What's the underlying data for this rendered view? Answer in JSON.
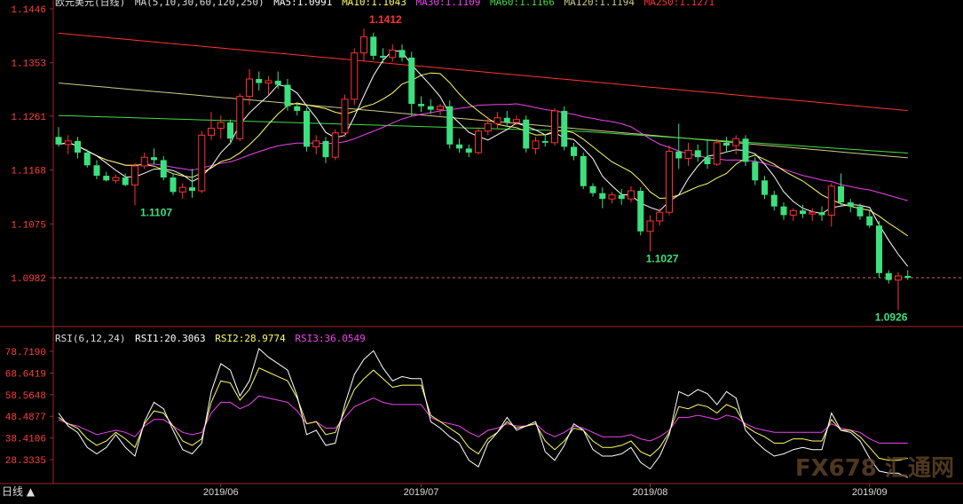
{
  "header": {
    "main_symbol": "欧元美元(日线)",
    "ma_params": "MA(5,10,30,60,120,250)",
    "ma5": "MA5:1.0991",
    "ma10": "MA10:1.1043",
    "ma30": "MA30:1.1109",
    "ma60": "MA60:1.1166",
    "ma120": "MA120:1.1194",
    "ma250": "MA250:1.1271"
  },
  "rsi_header": {
    "params": "RSI(6,12,24)",
    "rsi1": "RSI1:20.3063",
    "rsi2": "RSI2:28.9774",
    "rsi3": "RSI3:36.0549"
  },
  "period_label": "日线 ▲",
  "watermark": "FX678 汇通网",
  "colors": {
    "up": "#ff3232",
    "down": "#3ce07e",
    "ma5": "#ffffff",
    "ma10": "#ffff66",
    "ma30": "#ee44ee",
    "ma60": "#44dd44",
    "ma120": "#cccc88",
    "ma250": "#ff3333",
    "axis": "#aa2222",
    "grid": "#8b1a1a"
  },
  "chart_data": [
    {
      "type": "candlestick",
      "yaxis_ticks": [
        "1.1446",
        "1.1353",
        "1.1261",
        "1.1168",
        "1.1075",
        "1.0982"
      ],
      "ylim": [
        1.09,
        1.1446
      ],
      "current_price_line": 1.0982,
      "xaxis_ticks": [
        {
          "label": "2019/06",
          "index": 17
        },
        {
          "label": "2019/07",
          "index": 38
        },
        {
          "label": "2019/08",
          "index": 62
        },
        {
          "label": "2019/09",
          "index": 85
        }
      ],
      "annotations": [
        {
          "text": "1.1107",
          "index": 8,
          "value": 1.1107,
          "color": "#3ce07e"
        },
        {
          "text": "1.1412",
          "index": 32,
          "value": 1.1412,
          "color": "#ff3232"
        },
        {
          "text": "1.1027",
          "index": 61,
          "value": 1.1027,
          "color": "#3ce07e"
        },
        {
          "text": "1.0926",
          "index": 85,
          "value": 1.0926,
          "color": "#3ce07e"
        }
      ],
      "candles": [
        {
          "o": 1.1225,
          "h": 1.1242,
          "l": 1.1208,
          "c": 1.1212
        },
        {
          "o": 1.1212,
          "h": 1.1228,
          "l": 1.1195,
          "c": 1.1218
        },
        {
          "o": 1.1218,
          "h": 1.1225,
          "l": 1.1188,
          "c": 1.1198
        },
        {
          "o": 1.1198,
          "h": 1.1203,
          "l": 1.1172,
          "c": 1.1176
        },
        {
          "o": 1.1176,
          "h": 1.1185,
          "l": 1.1152,
          "c": 1.1158
        },
        {
          "o": 1.1158,
          "h": 1.1165,
          "l": 1.1148,
          "c": 1.115
        },
        {
          "o": 1.115,
          "h": 1.116,
          "l": 1.1145,
          "c": 1.1155
        },
        {
          "o": 1.1155,
          "h": 1.1162,
          "l": 1.114,
          "c": 1.1142
        },
        {
          "o": 1.1142,
          "h": 1.118,
          "l": 1.1107,
          "c": 1.1175
        },
        {
          "o": 1.1175,
          "h": 1.1198,
          "l": 1.117,
          "c": 1.119
        },
        {
          "o": 1.119,
          "h": 1.1205,
          "l": 1.1178,
          "c": 1.1185
        },
        {
          "o": 1.1185,
          "h": 1.1192,
          "l": 1.115,
          "c": 1.1155
        },
        {
          "o": 1.1155,
          "h": 1.1162,
          "l": 1.1125,
          "c": 1.113
        },
        {
          "o": 1.113,
          "h": 1.1145,
          "l": 1.1118,
          "c": 1.1138
        },
        {
          "o": 1.1138,
          "h": 1.117,
          "l": 1.112,
          "c": 1.1132
        },
        {
          "o": 1.1132,
          "h": 1.1235,
          "l": 1.1128,
          "c": 1.1228
        },
        {
          "o": 1.1228,
          "h": 1.1268,
          "l": 1.122,
          "c": 1.124
        },
        {
          "o": 1.124,
          "h": 1.1262,
          "l": 1.1222,
          "c": 1.125
        },
        {
          "o": 1.125,
          "h": 1.1255,
          "l": 1.1212,
          "c": 1.1222
        },
        {
          "o": 1.1222,
          "h": 1.13,
          "l": 1.1218,
          "c": 1.1295
        },
        {
          "o": 1.1295,
          "h": 1.1342,
          "l": 1.128,
          "c": 1.1325
        },
        {
          "o": 1.1325,
          "h": 1.1338,
          "l": 1.1305,
          "c": 1.1318
        },
        {
          "o": 1.1318,
          "h": 1.133,
          "l": 1.1298,
          "c": 1.1322
        },
        {
          "o": 1.1322,
          "h": 1.1338,
          "l": 1.1308,
          "c": 1.1315
        },
        {
          "o": 1.1315,
          "h": 1.1325,
          "l": 1.127,
          "c": 1.1278
        },
        {
          "o": 1.1278,
          "h": 1.1285,
          "l": 1.1262,
          "c": 1.127
        },
        {
          "o": 1.127,
          "h": 1.1275,
          "l": 1.12,
          "c": 1.1208
        },
        {
          "o": 1.1208,
          "h": 1.1228,
          "l": 1.1195,
          "c": 1.1218
        },
        {
          "o": 1.1218,
          "h": 1.1225,
          "l": 1.118,
          "c": 1.119
        },
        {
          "o": 1.119,
          "h": 1.1238,
          "l": 1.1185,
          "c": 1.1232
        },
        {
          "o": 1.1232,
          "h": 1.1298,
          "l": 1.1225,
          "c": 1.129
        },
        {
          "o": 1.129,
          "h": 1.1378,
          "l": 1.128,
          "c": 1.137
        },
        {
          "o": 1.137,
          "h": 1.1412,
          "l": 1.1355,
          "c": 1.1398
        },
        {
          "o": 1.1398,
          "h": 1.1405,
          "l": 1.1358,
          "c": 1.1365
        },
        {
          "o": 1.1365,
          "h": 1.1378,
          "l": 1.1352,
          "c": 1.1362
        },
        {
          "o": 1.1362,
          "h": 1.1385,
          "l": 1.1355,
          "c": 1.1375
        },
        {
          "o": 1.1375,
          "h": 1.1385,
          "l": 1.1355,
          "c": 1.1362
        },
        {
          "o": 1.1362,
          "h": 1.1372,
          "l": 1.126,
          "c": 1.1282
        },
        {
          "o": 1.1282,
          "h": 1.1295,
          "l": 1.1268,
          "c": 1.1278
        },
        {
          "o": 1.1278,
          "h": 1.129,
          "l": 1.1265,
          "c": 1.1272
        },
        {
          "o": 1.1272,
          "h": 1.1282,
          "l": 1.1262,
          "c": 1.1278
        },
        {
          "o": 1.1278,
          "h": 1.1288,
          "l": 1.1205,
          "c": 1.1212
        },
        {
          "o": 1.1212,
          "h": 1.1222,
          "l": 1.1198,
          "c": 1.1205
        },
        {
          "o": 1.1205,
          "h": 1.1212,
          "l": 1.119,
          "c": 1.1198
        },
        {
          "o": 1.1198,
          "h": 1.1242,
          "l": 1.1195,
          "c": 1.1235
        },
        {
          "o": 1.1235,
          "h": 1.126,
          "l": 1.1228,
          "c": 1.1248
        },
        {
          "o": 1.1248,
          "h": 1.1268,
          "l": 1.1238,
          "c": 1.1258
        },
        {
          "o": 1.1258,
          "h": 1.127,
          "l": 1.1242,
          "c": 1.125
        },
        {
          "o": 1.125,
          "h": 1.1262,
          "l": 1.1245,
          "c": 1.1255
        },
        {
          "o": 1.1255,
          "h": 1.1262,
          "l": 1.1198,
          "c": 1.1205
        },
        {
          "o": 1.1205,
          "h": 1.1225,
          "l": 1.1195,
          "c": 1.1218
        },
        {
          "o": 1.1218,
          "h": 1.123,
          "l": 1.1208,
          "c": 1.1215
        },
        {
          "o": 1.1215,
          "h": 1.1275,
          "l": 1.121,
          "c": 1.127
        },
        {
          "o": 1.127,
          "h": 1.1278,
          "l": 1.1202,
          "c": 1.1208
        },
        {
          "o": 1.1208,
          "h": 1.1215,
          "l": 1.1185,
          "c": 1.1192
        },
        {
          "o": 1.1192,
          "h": 1.1198,
          "l": 1.1135,
          "c": 1.114
        },
        {
          "o": 1.114,
          "h": 1.1145,
          "l": 1.1122,
          "c": 1.1128
        },
        {
          "o": 1.1128,
          "h": 1.1138,
          "l": 1.1102,
          "c": 1.1118
        },
        {
          "o": 1.1118,
          "h": 1.113,
          "l": 1.111,
          "c": 1.1125
        },
        {
          "o": 1.1125,
          "h": 1.1135,
          "l": 1.1108,
          "c": 1.1118
        },
        {
          "o": 1.1118,
          "h": 1.114,
          "l": 1.1112,
          "c": 1.1132
        },
        {
          "o": 1.1132,
          "h": 1.1138,
          "l": 1.1055,
          "c": 1.1062
        },
        {
          "o": 1.1062,
          "h": 1.109,
          "l": 1.1027,
          "c": 1.108
        },
        {
          "o": 1.108,
          "h": 1.1102,
          "l": 1.1072,
          "c": 1.1095
        },
        {
          "o": 1.1095,
          "h": 1.121,
          "l": 1.109,
          "c": 1.12
        },
        {
          "o": 1.12,
          "h": 1.1248,
          "l": 1.117,
          "c": 1.1188
        },
        {
          "o": 1.1188,
          "h": 1.1215,
          "l": 1.1175,
          "c": 1.1202
        },
        {
          "o": 1.1202,
          "h": 1.1212,
          "l": 1.1182,
          "c": 1.119
        },
        {
          "o": 1.119,
          "h": 1.122,
          "l": 1.117,
          "c": 1.1178
        },
        {
          "o": 1.1178,
          "h": 1.1222,
          "l": 1.1175,
          "c": 1.1215
        },
        {
          "o": 1.1215,
          "h": 1.1225,
          "l": 1.1198,
          "c": 1.121
        },
        {
          "o": 1.121,
          "h": 1.1228,
          "l": 1.1195,
          "c": 1.1222
        },
        {
          "o": 1.1222,
          "h": 1.1228,
          "l": 1.1175,
          "c": 1.1182
        },
        {
          "o": 1.1182,
          "h": 1.119,
          "l": 1.1142,
          "c": 1.115
        },
        {
          "o": 1.115,
          "h": 1.1158,
          "l": 1.1118,
          "c": 1.1125
        },
        {
          "o": 1.1125,
          "h": 1.1132,
          "l": 1.1098,
          "c": 1.1105
        },
        {
          "o": 1.1105,
          "h": 1.1112,
          "l": 1.1082,
          "c": 1.109
        },
        {
          "o": 1.109,
          "h": 1.1102,
          "l": 1.108,
          "c": 1.1098
        },
        {
          "o": 1.1098,
          "h": 1.1108,
          "l": 1.1085,
          "c": 1.1092
        },
        {
          "o": 1.1092,
          "h": 1.1102,
          "l": 1.108,
          "c": 1.1095
        },
        {
          "o": 1.1095,
          "h": 1.1105,
          "l": 1.108,
          "c": 1.109
        },
        {
          "o": 1.109,
          "h": 1.1145,
          "l": 1.107,
          "c": 1.114
        },
        {
          "o": 1.114,
          "h": 1.1162,
          "l": 1.1105,
          "c": 1.1112
        },
        {
          "o": 1.1112,
          "h": 1.1118,
          "l": 1.1095,
          "c": 1.1105
        },
        {
          "o": 1.1105,
          "h": 1.111,
          "l": 1.1082,
          "c": 1.1088
        },
        {
          "o": 1.1088,
          "h": 1.1098,
          "l": 1.1068,
          "c": 1.1072
        },
        {
          "o": 1.1072,
          "h": 1.108,
          "l": 1.0982,
          "c": 1.099
        },
        {
          "o": 1.099,
          "h": 1.0995,
          "l": 1.0972,
          "c": 1.0978
        },
        {
          "o": 1.0978,
          "h": 1.0992,
          "l": 1.0926,
          "c": 1.0985
        },
        {
          "o": 1.0985,
          "h": 1.0995,
          "l": 1.0978,
          "c": 1.0982
        }
      ]
    },
    {
      "type": "line",
      "title": "RSI(6,12,24)",
      "yaxis_ticks": [
        "78.7190",
        "68.6419",
        "58.5648",
        "48.4877",
        "38.4106",
        "28.3335"
      ],
      "ylim": [
        22,
        82
      ],
      "series": [
        {
          "name": "RSI1",
          "color": "#ffffff",
          "values": [
            50,
            44,
            41,
            34,
            31,
            34,
            40,
            34,
            30,
            46,
            55,
            52,
            42,
            33,
            31,
            36,
            60,
            73,
            70,
            58,
            65,
            80,
            76,
            73,
            70,
            58,
            40,
            42,
            35,
            36,
            54,
            68,
            75,
            79,
            71,
            65,
            67,
            66,
            66,
            46,
            43,
            39,
            36,
            28,
            25,
            36,
            41,
            48,
            42,
            44,
            46,
            32,
            28,
            35,
            45,
            42,
            33,
            30,
            30,
            31,
            34,
            27,
            24,
            30,
            40,
            60,
            58,
            61,
            59,
            54,
            60,
            57,
            42,
            37,
            33,
            30,
            31,
            33,
            34,
            33,
            33,
            50,
            42,
            41,
            37,
            29,
            23,
            22,
            22,
            20
          ]
        },
        {
          "name": "RSI2",
          "color": "#ffff66",
          "values": [
            48,
            45,
            43,
            38,
            35,
            37,
            41,
            38,
            34,
            45,
            51,
            50,
            44,
            37,
            35,
            38,
            55,
            65,
            64,
            56,
            61,
            71,
            69,
            67,
            65,
            57,
            45,
            46,
            40,
            41,
            51,
            61,
            66,
            70,
            66,
            62,
            63,
            63,
            63,
            49,
            46,
            43,
            40,
            34,
            31,
            38,
            41,
            46,
            43,
            44,
            45,
            37,
            33,
            37,
            43,
            42,
            37,
            34,
            34,
            35,
            37,
            32,
            30,
            34,
            41,
            53,
            52,
            54,
            53,
            50,
            54,
            52,
            44,
            41,
            39,
            36,
            36,
            38,
            38,
            37,
            37,
            47,
            42,
            42,
            39,
            34,
            29,
            28,
            28,
            29
          ]
        },
        {
          "name": "RSI3",
          "color": "#ee44ee",
          "values": [
            47,
            45,
            44,
            42,
            40,
            41,
            42,
            41,
            39,
            44,
            47,
            47,
            44,
            41,
            40,
            41,
            50,
            55,
            55,
            52,
            54,
            58,
            57,
            56,
            55,
            51,
            45,
            46,
            43,
            43,
            48,
            53,
            55,
            57,
            55,
            54,
            54,
            54,
            54,
            48,
            46,
            45,
            44,
            41,
            39,
            42,
            43,
            45,
            44,
            44,
            45,
            41,
            39,
            41,
            44,
            43,
            41,
            39,
            39,
            39,
            40,
            38,
            37,
            39,
            42,
            48,
            48,
            49,
            48,
            47,
            49,
            48,
            45,
            43,
            42,
            41,
            41,
            41,
            41,
            41,
            41,
            45,
            43,
            42,
            41,
            38,
            36,
            36,
            36,
            36
          ]
        }
      ]
    }
  ]
}
